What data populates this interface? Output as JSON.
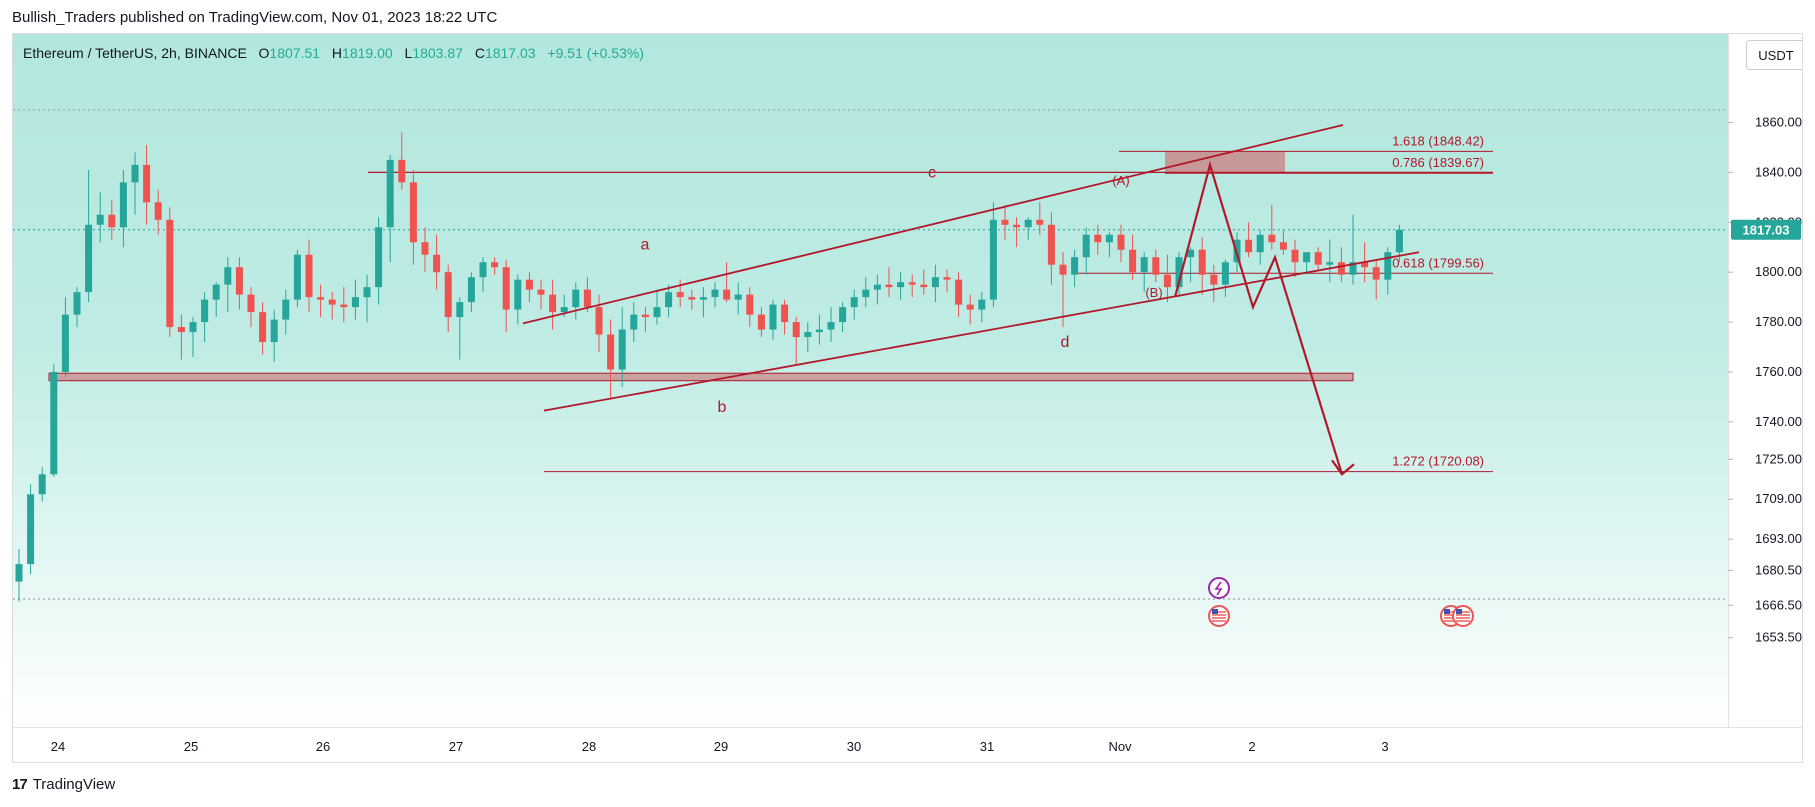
{
  "header": {
    "publisher_line": "Bullish_Traders published on TradingView.com, Nov 01, 2023 18:22 UTC"
  },
  "legend": {
    "symbol": "Ethereum / TetherUS, 2h, BINANCE",
    "open_label": "O",
    "open": "1807.51",
    "high_label": "H",
    "high": "1819.00",
    "low_label": "L",
    "low": "1803.87",
    "close_label": "C",
    "close": "1817.03",
    "change": "+9.51 (+0.53%)"
  },
  "unit_button": "USDT",
  "footer": {
    "brand": "TradingView",
    "logo_mark": "17"
  },
  "colors": {
    "up": "#26a69a",
    "down": "#ef5350",
    "drawing": "#b2182b",
    "zone": "#c98a8a",
    "price_tag": "#26a69a"
  },
  "chart_data": {
    "type": "candlestick",
    "symbol": "Ethereum / TetherUS",
    "interval": "2h",
    "exchange": "BINANCE",
    "ylim": [
      1650,
      1870
    ],
    "y_ticks": [
      "1860.00",
      "1840.00",
      "1820.00",
      "1800.00",
      "1780.00",
      "1760.00",
      "1740.00",
      "1725.00",
      "1709.00",
      "1693.00",
      "1680.50",
      "1666.50",
      "1653.50"
    ],
    "x_ticks": [
      "24",
      "25",
      "26",
      "27",
      "28",
      "29",
      "30",
      "31",
      "Nov",
      "2",
      "3"
    ],
    "last_price": "1817.03",
    "candles": [
      [
        1676,
        1689,
        1668,
        1683
      ],
      [
        1683,
        1715,
        1679,
        1711
      ],
      [
        1711,
        1722,
        1708,
        1719
      ],
      [
        1719,
        1763,
        1718,
        1760
      ],
      [
        1760,
        1790,
        1758,
        1783
      ],
      [
        1783,
        1794,
        1778,
        1792
      ],
      [
        1792,
        1841,
        1788,
        1819
      ],
      [
        1819,
        1832,
        1812,
        1823
      ],
      [
        1823,
        1829,
        1813,
        1818
      ],
      [
        1818,
        1841,
        1810,
        1836
      ],
      [
        1836,
        1848,
        1823,
        1843
      ],
      [
        1843,
        1851,
        1819,
        1828
      ],
      [
        1828,
        1833,
        1815,
        1821
      ],
      [
        1821,
        1826,
        1774,
        1778
      ],
      [
        1778,
        1783,
        1765,
        1776
      ],
      [
        1776,
        1782,
        1766,
        1780
      ],
      [
        1780,
        1792,
        1772,
        1789
      ],
      [
        1789,
        1796,
        1782,
        1795
      ],
      [
        1795,
        1806,
        1784,
        1802
      ],
      [
        1802,
        1806,
        1785,
        1791
      ],
      [
        1791,
        1794,
        1778,
        1784
      ],
      [
        1784,
        1788,
        1767,
        1772
      ],
      [
        1772,
        1785,
        1764,
        1781
      ],
      [
        1781,
        1793,
        1775,
        1789
      ],
      [
        1789,
        1809,
        1786,
        1807
      ],
      [
        1807,
        1813,
        1784,
        1790
      ],
      [
        1790,
        1795,
        1782,
        1789
      ],
      [
        1789,
        1792,
        1781,
        1787
      ],
      [
        1787,
        1794,
        1780,
        1786
      ],
      [
        1786,
        1797,
        1781,
        1790
      ],
      [
        1790,
        1799,
        1780,
        1794
      ],
      [
        1794,
        1822,
        1787,
        1818
      ],
      [
        1818,
        1847,
        1804,
        1845
      ],
      [
        1845,
        1856,
        1833,
        1836
      ],
      [
        1836,
        1841,
        1803,
        1812
      ],
      [
        1812,
        1818,
        1800,
        1807
      ],
      [
        1807,
        1815,
        1793,
        1800
      ],
      [
        1800,
        1803,
        1776,
        1782
      ],
      [
        1782,
        1790,
        1765,
        1788
      ],
      [
        1788,
        1800,
        1784,
        1798
      ],
      [
        1798,
        1806,
        1792,
        1804
      ],
      [
        1804,
        1806,
        1799,
        1802
      ],
      [
        1802,
        1805,
        1776,
        1785
      ],
      [
        1785,
        1799,
        1779,
        1797
      ],
      [
        1797,
        1800,
        1788,
        1793
      ],
      [
        1793,
        1797,
        1785,
        1791
      ],
      [
        1791,
        1797,
        1777,
        1784
      ],
      [
        1784,
        1791,
        1782,
        1786
      ],
      [
        1786,
        1796,
        1781,
        1793
      ],
      [
        1793,
        1798,
        1784,
        1786
      ],
      [
        1786,
        1791,
        1768,
        1775
      ],
      [
        1775,
        1781,
        1749,
        1761
      ],
      [
        1761,
        1786,
        1754,
        1777
      ],
      [
        1777,
        1788,
        1772,
        1783
      ],
      [
        1783,
        1786,
        1776,
        1782
      ],
      [
        1782,
        1793,
        1779,
        1786
      ],
      [
        1786,
        1795,
        1782,
        1792
      ],
      [
        1792,
        1797,
        1786,
        1790
      ],
      [
        1790,
        1793,
        1785,
        1789
      ],
      [
        1789,
        1794,
        1782,
        1790
      ],
      [
        1790,
        1796,
        1786,
        1793
      ],
      [
        1793,
        1804,
        1788,
        1789
      ],
      [
        1789,
        1796,
        1783,
        1791
      ],
      [
        1791,
        1794,
        1778,
        1783
      ],
      [
        1783,
        1786,
        1774,
        1777
      ],
      [
        1777,
        1789,
        1773,
        1787
      ],
      [
        1787,
        1789,
        1775,
        1780
      ],
      [
        1780,
        1782,
        1763,
        1774
      ],
      [
        1774,
        1780,
        1768,
        1776
      ],
      [
        1776,
        1783,
        1771,
        1777
      ],
      [
        1777,
        1786,
        1772,
        1780
      ],
      [
        1780,
        1788,
        1776,
        1786
      ],
      [
        1786,
        1793,
        1781,
        1790
      ],
      [
        1790,
        1798,
        1786,
        1793
      ],
      [
        1793,
        1799,
        1787,
        1795
      ],
      [
        1795,
        1802,
        1790,
        1794
      ],
      [
        1794,
        1800,
        1789,
        1796
      ],
      [
        1796,
        1799,
        1790,
        1795
      ],
      [
        1795,
        1801,
        1791,
        1794
      ],
      [
        1794,
        1803,
        1788,
        1798
      ],
      [
        1798,
        1801,
        1792,
        1797
      ],
      [
        1797,
        1800,
        1782,
        1787
      ],
      [
        1787,
        1791,
        1779,
        1785
      ],
      [
        1785,
        1792,
        1780,
        1789
      ],
      [
        1789,
        1828,
        1786,
        1821
      ],
      [
        1821,
        1827,
        1813,
        1819
      ],
      [
        1819,
        1822,
        1810,
        1818
      ],
      [
        1818,
        1822,
        1813,
        1821
      ],
      [
        1821,
        1828,
        1815,
        1819
      ],
      [
        1819,
        1824,
        1795,
        1803
      ],
      [
        1803,
        1808,
        1778,
        1799
      ],
      [
        1799,
        1809,
        1794,
        1806
      ],
      [
        1806,
        1818,
        1799,
        1815
      ],
      [
        1815,
        1819,
        1807,
        1812
      ],
      [
        1812,
        1816,
        1806,
        1815
      ],
      [
        1815,
        1819,
        1804,
        1809
      ],
      [
        1809,
        1815,
        1797,
        1800
      ],
      [
        1800,
        1808,
        1792,
        1806
      ],
      [
        1806,
        1809,
        1796,
        1799
      ],
      [
        1799,
        1807,
        1788,
        1794
      ],
      [
        1794,
        1808,
        1790,
        1806
      ],
      [
        1806,
        1810,
        1796,
        1809
      ],
      [
        1809,
        1814,
        1791,
        1799
      ],
      [
        1799,
        1803,
        1788,
        1795
      ],
      [
        1795,
        1805,
        1790,
        1804
      ],
      [
        1804,
        1816,
        1800,
        1813
      ],
      [
        1813,
        1820,
        1806,
        1808
      ],
      [
        1808,
        1817,
        1803,
        1815
      ],
      [
        1815,
        1827,
        1809,
        1812
      ],
      [
        1812,
        1817,
        1807,
        1809
      ],
      [
        1809,
        1813,
        1798,
        1804
      ],
      [
        1804,
        1808,
        1799,
        1808
      ],
      [
        1808,
        1810,
        1801,
        1803
      ],
      [
        1803,
        1813,
        1796,
        1804
      ],
      [
        1804,
        1810,
        1796,
        1799
      ],
      [
        1799,
        1823,
        1795,
        1804
      ],
      [
        1804,
        1812,
        1796,
        1802
      ],
      [
        1802,
        1805,
        1789,
        1797
      ],
      [
        1797,
        1810,
        1791,
        1808
      ],
      [
        1808,
        1819,
        1804,
        1817
      ]
    ],
    "annotations": {
      "wave_labels": [
        "a",
        "b",
        "c",
        "d",
        "(A)",
        "(B)"
      ],
      "fib_levels": [
        {
          "label": "1.618 (1848.42)",
          "price": 1848.42
        },
        {
          "label": "0.786 (1839.67)",
          "price": 1839.67
        },
        {
          "label": "0.618 (1799.56)",
          "price": 1799.56
        },
        {
          "label": "1.272 (1720.08)",
          "price": 1720.08
        }
      ],
      "support_zone": [
        1756.5,
        1759.5
      ],
      "resistance_zone": [
        1840,
        1848.5
      ],
      "horizontal_line": 1840.0,
      "channel_upper": [
        [
          1779.5,
          1767
        ],
        [
          1859,
          1841
        ]
      ],
      "channel_lower": [
        [
          1744.5,
          1768
        ],
        [
          1808,
          1818
        ]
      ],
      "projection_path": [
        1790,
        1843,
        1786,
        1806,
        1719
      ]
    },
    "events": [
      "flash-icon",
      "us-flag-icon",
      "us-flag-icon",
      "us-flag-icon"
    ]
  }
}
